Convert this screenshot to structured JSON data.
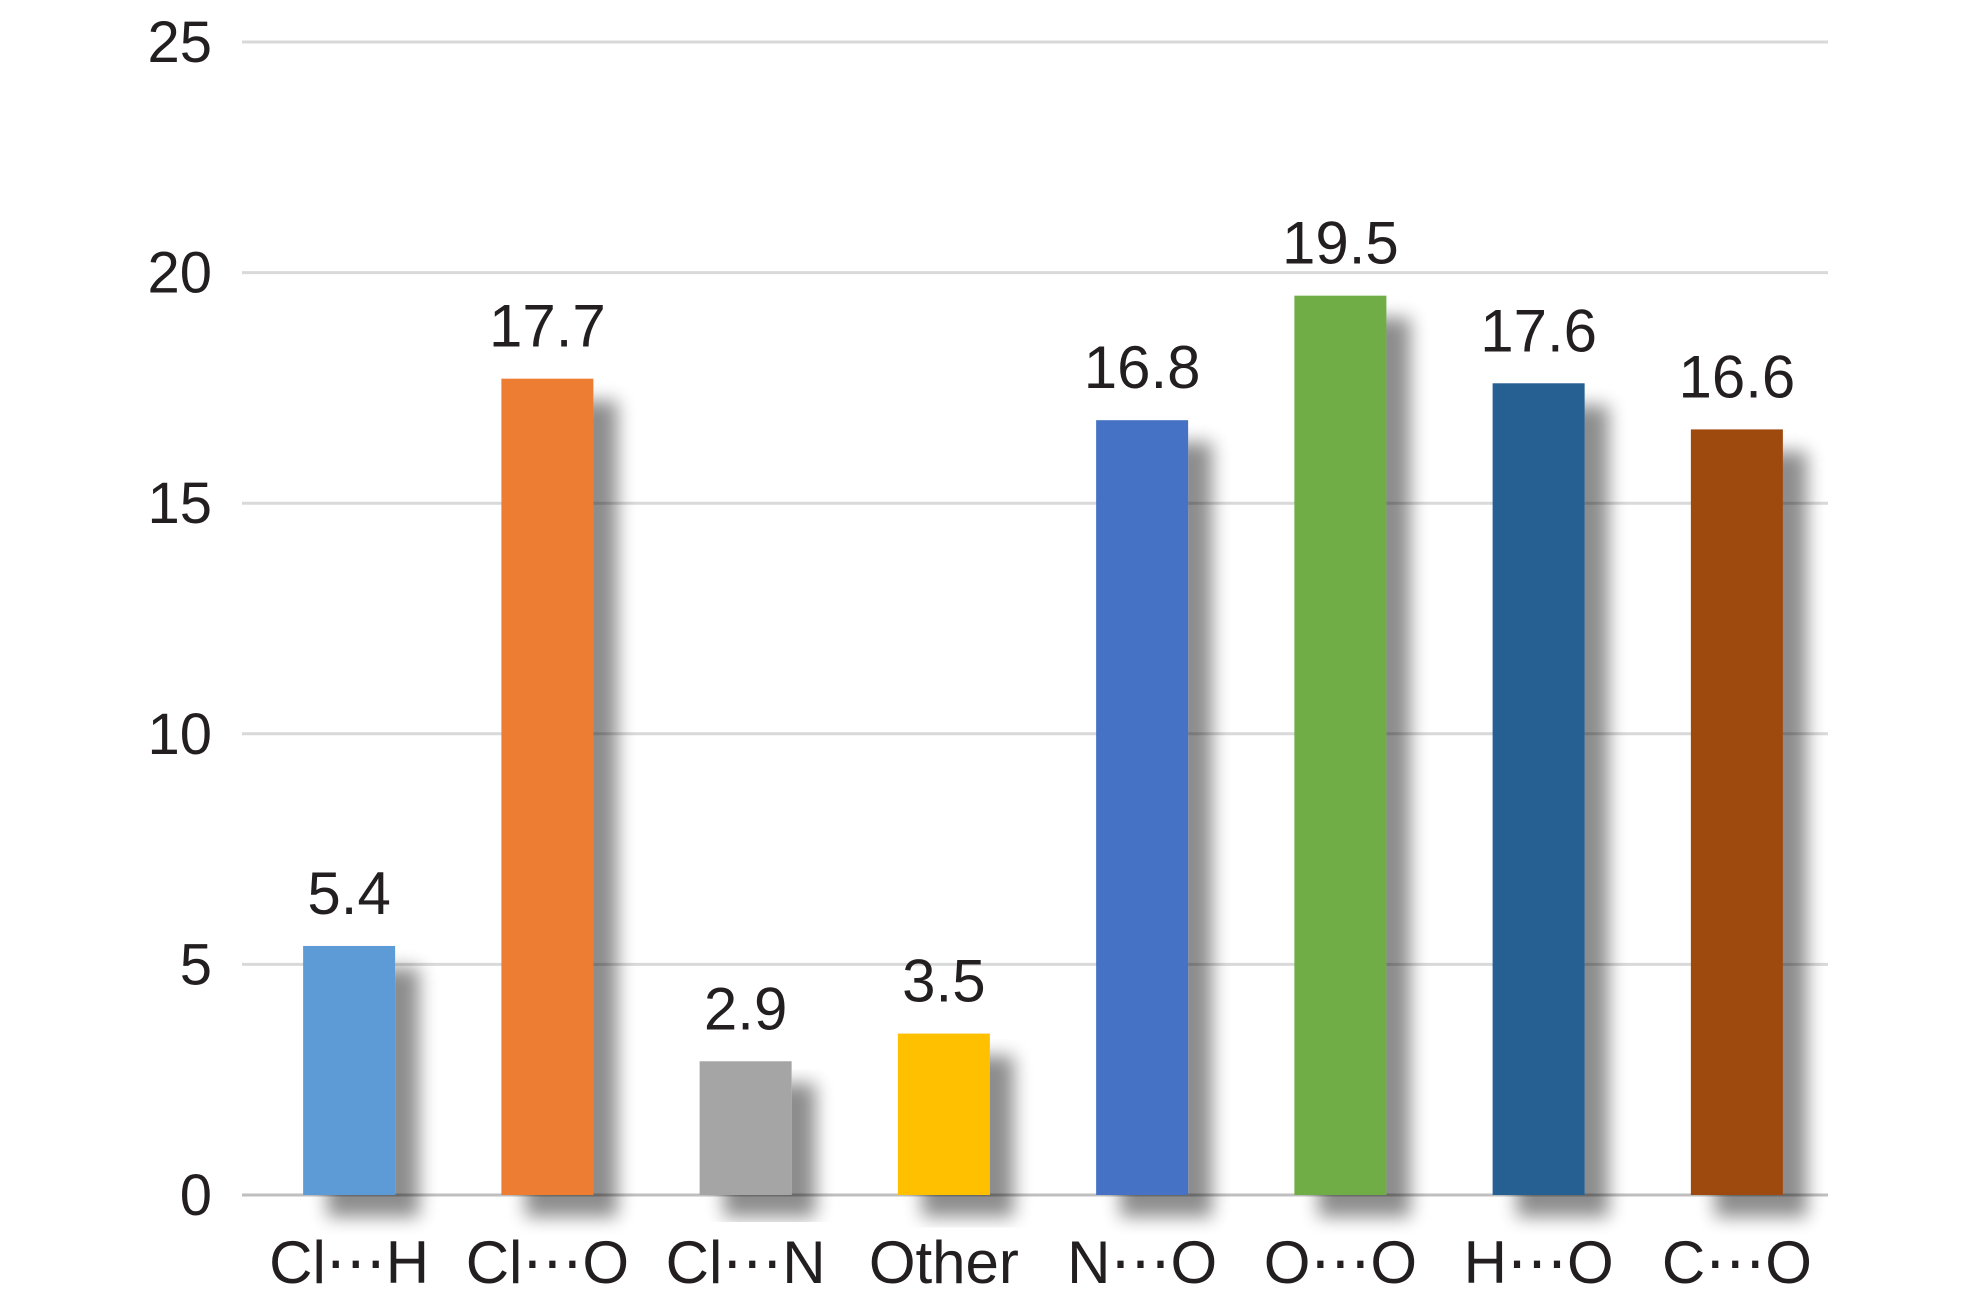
{
  "chart_data": {
    "type": "bar",
    "categories": [
      "Cl⋯H",
      "Cl⋯O",
      "Cl⋯N",
      "Other",
      "N⋯O",
      "O⋯O",
      "H⋯O",
      "C⋯O"
    ],
    "values": [
      5.4,
      17.7,
      2.9,
      3.5,
      16.8,
      19.5,
      17.6,
      16.6
    ],
    "value_labels": [
      "5.4",
      "17.7",
      "2.9",
      "3.5",
      "16.8",
      "19.5",
      "17.6",
      "16.6"
    ],
    "colors": [
      "#5b9bd5",
      "#ed7d31",
      "#a5a5a5",
      "#ffc000",
      "#4472c4",
      "#70ad47",
      "#255e91",
      "#9e480e"
    ],
    "ylim": [
      0,
      25
    ],
    "yticks": [
      0,
      5,
      10,
      15,
      20,
      25
    ],
    "ytick_labels": [
      "0",
      "5",
      "10",
      "15",
      "20",
      "25"
    ],
    "grid": true,
    "title": "",
    "xlabel": "",
    "ylabel": ""
  }
}
